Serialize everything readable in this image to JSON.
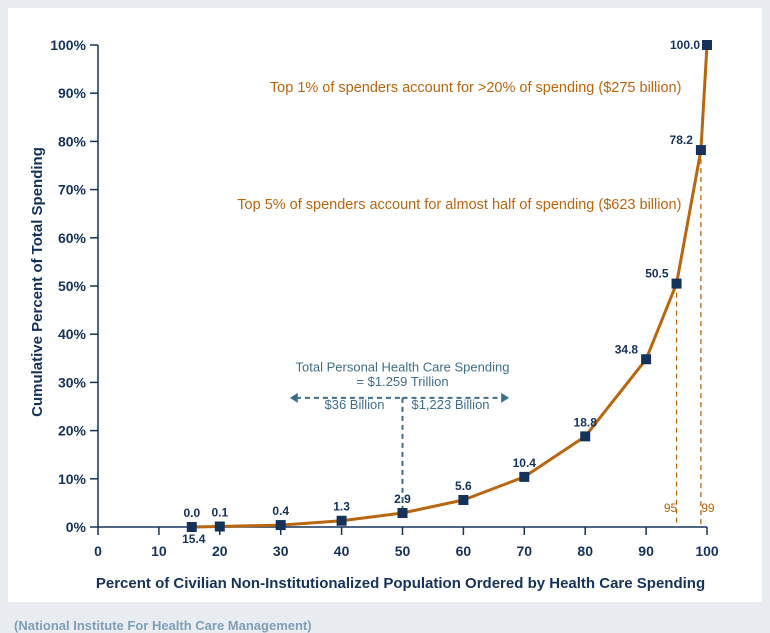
{
  "chart_data": {
    "type": "line",
    "xlabel": "Percent of Civilian Non-Institutionalized Population Ordered by Health Care Spending",
    "ylabel": "Cumulative Percent of Total Spending",
    "xlim": [
      0,
      100
    ],
    "ylim": [
      0,
      100
    ],
    "x_ticks": [
      "0",
      "10",
      "20",
      "30",
      "40",
      "50",
      "60",
      "70",
      "80",
      "90",
      "100"
    ],
    "y_ticks": [
      "0%",
      "10%",
      "20%",
      "30%",
      "40%",
      "50%",
      "60%",
      "70%",
      "80%",
      "90%",
      "100%"
    ],
    "grid": false,
    "colors": {
      "line": "#b8660f",
      "marker": "#15325b",
      "axis": "#15325b",
      "annotation": "#b8660f",
      "note": "#3f6e8a"
    },
    "series": [
      {
        "x": [
          15.4,
          20,
          30,
          40,
          50,
          60,
          70,
          80,
          90,
          95,
          99,
          100
        ],
        "y": [
          0.0,
          0.1,
          0.4,
          1.3,
          2.9,
          5.6,
          10.4,
          18.8,
          34.8,
          50.5,
          78.2,
          100.0
        ],
        "point_labels": [
          "0.0",
          "0.1",
          "0.4",
          "1.3",
          "2.9",
          "5.6",
          "10.4",
          "18.8",
          "34.8",
          "50.5",
          "78.2",
          "100.0"
        ]
      }
    ],
    "x_start_label": "15.4",
    "annotations": [
      "Top 1% of spenders account for >20% of spending ($275 billion)",
      "Top 5% of spenders account for almost half of spending ($623 billion)"
    ],
    "total_note": {
      "line1": "Total Personal Health Care Spending",
      "line2": "= $1.259 Trillion",
      "left": "$36 Billion",
      "right": "$1,223 Billion",
      "split_at_x": 50
    },
    "percentile_markers": [
      {
        "x": 95,
        "label": "95"
      },
      {
        "x": 99,
        "label": "99"
      }
    ]
  },
  "source": "(National Institute For Health Care Management)"
}
